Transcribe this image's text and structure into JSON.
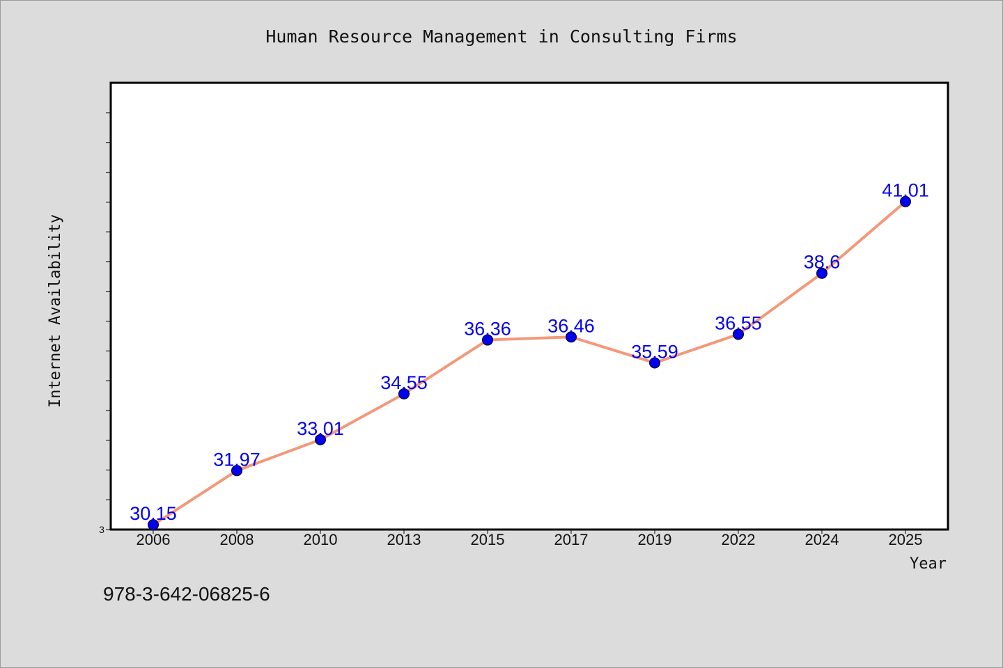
{
  "chart_data": {
    "type": "line",
    "title": "Human Resource Management in Consulting Firms",
    "xlabel": "Year",
    "ylabel": "Internet Availability",
    "categories": [
      "2006",
      "2008",
      "2010",
      "2013",
      "2015",
      "2017",
      "2019",
      "2022",
      "2024",
      "2025"
    ],
    "series": [
      {
        "values": [
          30.15,
          31.97,
          33.01,
          34.55,
          36.36,
          36.46,
          35.59,
          36.55,
          38.6,
          41.01
        ],
        "labels": [
          "30.15",
          "31.97",
          "33.01",
          "34.55",
          "36.36",
          "36.46",
          "35.59",
          "36.55",
          "38.6",
          "41.01"
        ]
      }
    ],
    "ylim": [
      29.99,
      45.0
    ],
    "ytick_labels": [
      "3"
    ],
    "minor_ticks_y": 14,
    "grid": false,
    "line_color": "#f4987a",
    "marker_color": "#0000ee",
    "label_color": "#0000ee"
  },
  "footnote": "978-3-642-06825-6"
}
